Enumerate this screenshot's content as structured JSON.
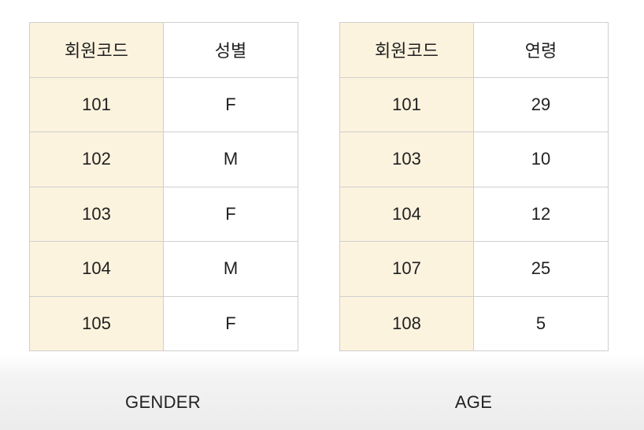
{
  "tables": [
    {
      "caption": "GENDER",
      "headers": [
        "회원코드",
        "성별"
      ],
      "rows": [
        [
          "101",
          "F"
        ],
        [
          "102",
          "M"
        ],
        [
          "103",
          "F"
        ],
        [
          "104",
          "M"
        ],
        [
          "105",
          "F"
        ]
      ]
    },
    {
      "caption": "AGE",
      "headers": [
        "회원코드",
        "연령"
      ],
      "rows": [
        [
          "101",
          "29"
        ],
        [
          "103",
          "10"
        ],
        [
          "104",
          "12"
        ],
        [
          "107",
          "25"
        ],
        [
          "108",
          "5"
        ]
      ]
    }
  ],
  "colors": {
    "key_column_bg": "#fcf3de",
    "border": "#cfcfcf"
  }
}
